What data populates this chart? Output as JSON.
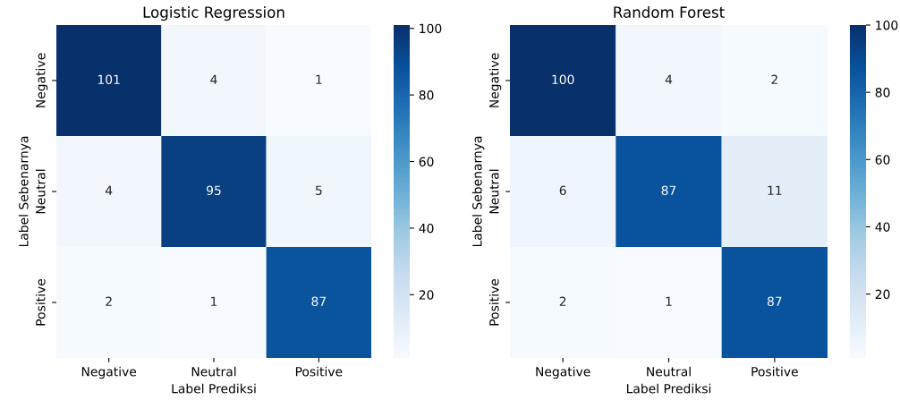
{
  "chart_data": [
    {
      "type": "heatmap",
      "title": "Logistic Regression",
      "xlabel": "Label Prediksi",
      "ylabel": "Label Sebenarnya",
      "categories": [
        "Negative",
        "Neutral",
        "Positive"
      ],
      "y_categories": [
        "Negative",
        "Neutral",
        "Positive"
      ],
      "cells": [
        [
          101,
          4,
          1
        ],
        [
          4,
          95,
          5
        ],
        [
          2,
          1,
          87
        ]
      ],
      "data_labels": true,
      "clim": [
        1,
        101
      ],
      "cticks": [
        20,
        40,
        60,
        80,
        100
      ]
    },
    {
      "type": "heatmap",
      "title": "Random Forest",
      "xlabel": "Label Prediksi",
      "ylabel": "Label Sebenarnya",
      "categories": [
        "Negative",
        "Neutral",
        "Positive"
      ],
      "y_categories": [
        "Negative",
        "Neutral",
        "Positive"
      ],
      "cells": [
        [
          100,
          4,
          2
        ],
        [
          6,
          87,
          11
        ],
        [
          2,
          1,
          87
        ]
      ],
      "data_labels": true,
      "clim": [
        1,
        100
      ],
      "cticks": [
        20,
        40,
        60,
        80,
        100
      ]
    }
  ]
}
